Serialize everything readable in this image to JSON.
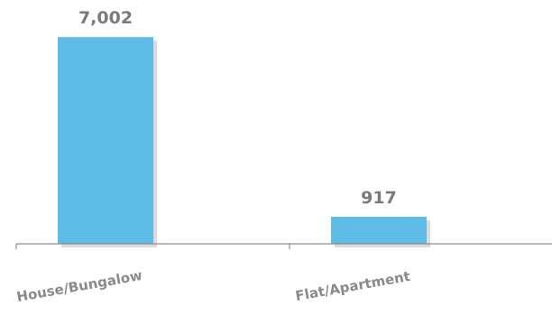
{
  "chart_data": {
    "type": "bar",
    "categories": [
      "House/Bungalow",
      "Flat/Apartment"
    ],
    "values": [
      7002,
      917
    ],
    "value_labels": [
      "7,002",
      "917"
    ],
    "title": "",
    "xlabel": "",
    "ylabel": "",
    "ylim": [
      0,
      7800
    ],
    "grid": false,
    "legend": "none",
    "colors": {
      "bar": "#5fbce6",
      "label": "#7a7a7a",
      "axis": "#8c8c8c"
    }
  }
}
